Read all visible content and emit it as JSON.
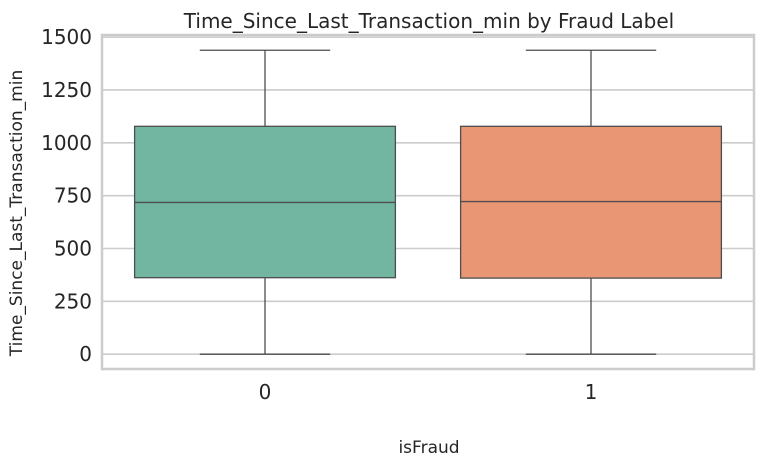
{
  "chart_data": {
    "type": "box",
    "title": "Time_Since_Last_Transaction_min by Fraud Label",
    "xlabel": "isFraud",
    "ylabel": "Time_Since_Last_Transaction_min",
    "categories": [
      "0",
      "1"
    ],
    "boxes": [
      {
        "category": "0",
        "min": 0,
        "q1": 362,
        "median": 718,
        "q3": 1078,
        "max": 1438,
        "color": "#72b6a1"
      },
      {
        "category": "1",
        "min": 0,
        "q1": 360,
        "median": 722,
        "q3": 1078,
        "max": 1438,
        "color": "#e99675"
      }
    ],
    "ylim": [
      -70,
      1510
    ],
    "yticks": [
      0,
      250,
      500,
      750,
      1000,
      1250,
      1500
    ],
    "grid": true
  },
  "colors": {
    "grid": "#cccccc",
    "box_edge": "#4d4d4d",
    "text": "#262626"
  }
}
